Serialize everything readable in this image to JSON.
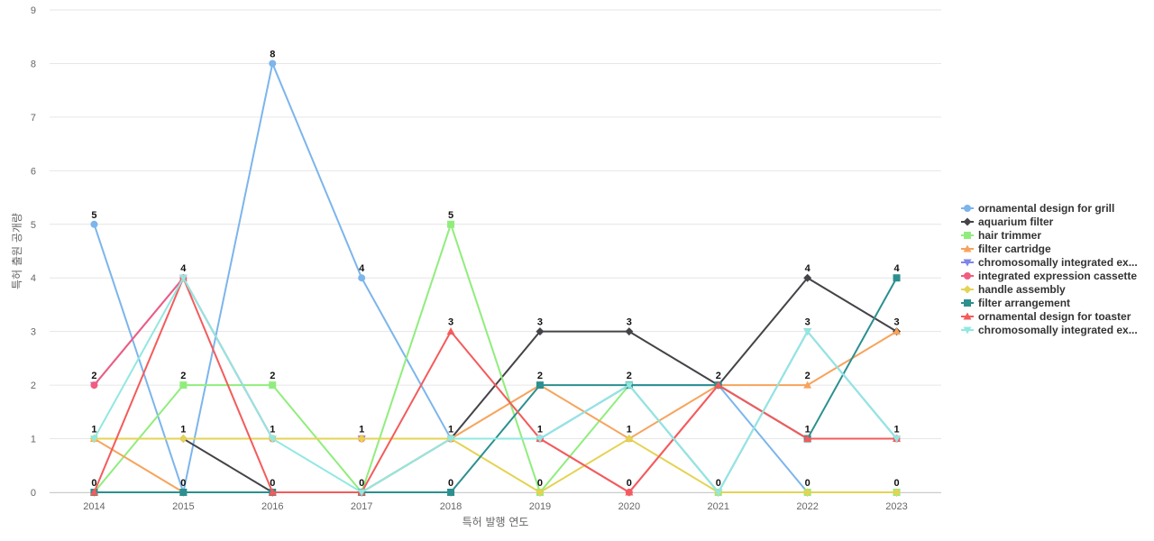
{
  "chart_data": {
    "type": "line",
    "xlabel": "특허 발행 연도",
    "ylabel": "특허 출원 공개량",
    "ylim": [
      0,
      9
    ],
    "yticks": [
      0,
      1,
      2,
      3,
      4,
      5,
      6,
      7,
      8,
      9
    ],
    "categories": [
      "2014",
      "2015",
      "2016",
      "2017",
      "2018",
      "2019",
      "2020",
      "2021",
      "2022",
      "2023"
    ],
    "grid": true,
    "legend_position": "right",
    "series": [
      {
        "name": "ornamental design for grill",
        "color": "#7cb5ec",
        "marker": "circle",
        "values": [
          5,
          0,
          8,
          4,
          1,
          1,
          2,
          2,
          0,
          0
        ]
      },
      {
        "name": "aquarium filter",
        "color": "#434348",
        "marker": "diamond",
        "values": [
          1,
          1,
          0,
          0,
          1,
          3,
          3,
          2,
          4,
          3
        ]
      },
      {
        "name": "hair trimmer",
        "color": "#90ed7d",
        "marker": "square",
        "values": [
          0,
          2,
          2,
          0,
          5,
          0,
          2,
          0,
          0,
          0
        ]
      },
      {
        "name": "filter cartridge",
        "color": "#f7a35c",
        "marker": "triangle",
        "values": [
          1,
          0,
          0,
          0,
          1,
          2,
          1,
          2,
          2,
          3
        ]
      },
      {
        "name": "chromosomally integrated ex...",
        "color": "#8085e9",
        "marker": "triangle-down",
        "values": [
          2,
          4,
          1,
          1,
          1,
          1,
          2,
          0,
          3,
          1
        ]
      },
      {
        "name": "integrated expression cassette",
        "color": "#f15c80",
        "marker": "circle",
        "values": [
          2,
          4,
          1,
          1,
          1,
          1,
          0,
          2,
          1,
          1
        ]
      },
      {
        "name": "handle assembly",
        "color": "#e4d354",
        "marker": "diamond",
        "values": [
          1,
          1,
          1,
          1,
          1,
          0,
          1,
          0,
          0,
          0
        ]
      },
      {
        "name": "filter arrangement",
        "color": "#2b908f",
        "marker": "square",
        "values": [
          0,
          0,
          0,
          0,
          0,
          2,
          2,
          2,
          1,
          4
        ]
      },
      {
        "name": "ornamental design for toaster",
        "color": "#f45b5b",
        "marker": "triangle",
        "values": [
          0,
          4,
          0,
          0,
          3,
          1,
          0,
          2,
          1,
          1
        ]
      },
      {
        "name": "chromosomally integrated ex...",
        "color": "#91e8e1",
        "marker": "triangle-down",
        "values": [
          1,
          4,
          1,
          0,
          1,
          1,
          2,
          0,
          3,
          1
        ]
      }
    ],
    "data_labels": [
      {
        "x": "2014",
        "y": 5,
        "text": "5"
      },
      {
        "x": "2014",
        "y": 2,
        "text": "2"
      },
      {
        "x": "2014",
        "y": 1,
        "text": "1"
      },
      {
        "x": "2014",
        "y": 0,
        "text": "0"
      },
      {
        "x": "2015",
        "y": 4,
        "text": "4"
      },
      {
        "x": "2015",
        "y": 2,
        "text": "2"
      },
      {
        "x": "2015",
        "y": 1,
        "text": "1"
      },
      {
        "x": "2015",
        "y": 0,
        "text": "0"
      },
      {
        "x": "2016",
        "y": 8,
        "text": "8"
      },
      {
        "x": "2016",
        "y": 2,
        "text": "2"
      },
      {
        "x": "2016",
        "y": 1,
        "text": "1"
      },
      {
        "x": "2016",
        "y": 0,
        "text": "0"
      },
      {
        "x": "2017",
        "y": 4,
        "text": "4"
      },
      {
        "x": "2017",
        "y": 1,
        "text": "1"
      },
      {
        "x": "2017",
        "y": 0,
        "text": "0"
      },
      {
        "x": "2018",
        "y": 5,
        "text": "5"
      },
      {
        "x": "2018",
        "y": 3,
        "text": "3"
      },
      {
        "x": "2018",
        "y": 1,
        "text": "1"
      },
      {
        "x": "2018",
        "y": 0,
        "text": "0"
      },
      {
        "x": "2019",
        "y": 3,
        "text": "3"
      },
      {
        "x": "2019",
        "y": 2,
        "text": "2"
      },
      {
        "x": "2019",
        "y": 1,
        "text": "1"
      },
      {
        "x": "2019",
        "y": 0,
        "text": "0"
      },
      {
        "x": "2020",
        "y": 3,
        "text": "3"
      },
      {
        "x": "2020",
        "y": 2,
        "text": "2"
      },
      {
        "x": "2020",
        "y": 1,
        "text": "1"
      },
      {
        "x": "2020",
        "y": 0,
        "text": "0"
      },
      {
        "x": "2021",
        "y": 2,
        "text": "2"
      },
      {
        "x": "2021",
        "y": 0,
        "text": "0"
      },
      {
        "x": "2022",
        "y": 4,
        "text": "4"
      },
      {
        "x": "2022",
        "y": 3,
        "text": "3"
      },
      {
        "x": "2022",
        "y": 2,
        "text": "2"
      },
      {
        "x": "2022",
        "y": 1,
        "text": "1"
      },
      {
        "x": "2022",
        "y": 0,
        "text": "0"
      },
      {
        "x": "2023",
        "y": 4,
        "text": "4"
      },
      {
        "x": "2023",
        "y": 3,
        "text": "3"
      },
      {
        "x": "2023",
        "y": 1,
        "text": "1"
      },
      {
        "x": "2023",
        "y": 0,
        "text": "0"
      }
    ]
  }
}
